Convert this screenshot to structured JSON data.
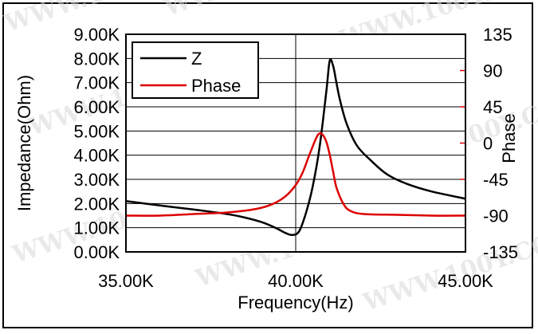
{
  "watermark": "WWW.100Y.COM.TW",
  "chart_data": {
    "type": "line",
    "title": "",
    "xlabel": "Frequency(Hz)",
    "ylabel_left": "Impedance(Ohm)",
    "ylabel_right": "Phase",
    "xlim": [
      35000,
      45000
    ],
    "ylim_left": [
      0,
      9000
    ],
    "ylim_right": [
      -135,
      135
    ],
    "x_ticks": [
      35000,
      40000,
      45000
    ],
    "x_tick_labels": [
      "35.00K",
      "40.00K",
      "45.00K"
    ],
    "y_left_ticks": [
      0,
      1000,
      2000,
      3000,
      4000,
      5000,
      6000,
      7000,
      8000,
      9000
    ],
    "y_left_tick_labels": [
      "0.00K",
      "1.00K",
      "2.00K",
      "3.00K",
      "4.00K",
      "5.00K",
      "6.00K",
      "7.00K",
      "8.00K",
      "9.00K"
    ],
    "y_right_ticks": [
      -135,
      -90,
      -45,
      0,
      45,
      90,
      135
    ],
    "y_right_tick_labels": [
      "-135",
      "-90",
      "-45",
      "0",
      "45",
      "90",
      "135"
    ],
    "grid": true,
    "legend_position": "top-left",
    "series": [
      {
        "name": "Z",
        "axis": "left",
        "color": "#000000",
        "x": [
          35000,
          36000,
          37000,
          38000,
          38500,
          39000,
          39400,
          39700,
          39900,
          40100,
          40300,
          40500,
          40700,
          40900,
          41000,
          41100,
          41200,
          41300,
          41500,
          41800,
          42200,
          42700,
          43300,
          44000,
          45000
        ],
        "y": [
          2100,
          1920,
          1750,
          1560,
          1420,
          1230,
          1000,
          780,
          700,
          850,
          1600,
          2700,
          4300,
          6600,
          7900,
          7700,
          7000,
          6300,
          5300,
          4400,
          3800,
          3200,
          2800,
          2500,
          2200
        ]
      },
      {
        "name": "Phase",
        "axis": "right",
        "color": "#dd0000",
        "x": [
          35000,
          36000,
          37000,
          38000,
          38800,
          39300,
          39700,
          40000,
          40200,
          40400,
          40600,
          40700,
          40800,
          40900,
          41000,
          41100,
          41200,
          41400,
          41600,
          42000,
          43000,
          44000,
          45000
        ],
        "y": [
          -90,
          -90,
          -88,
          -86,
          -82,
          -76,
          -66,
          -52,
          -37,
          -15,
          6,
          12,
          10,
          2,
          -14,
          -35,
          -55,
          -75,
          -84,
          -88,
          -89,
          -90,
          -90
        ]
      }
    ]
  }
}
